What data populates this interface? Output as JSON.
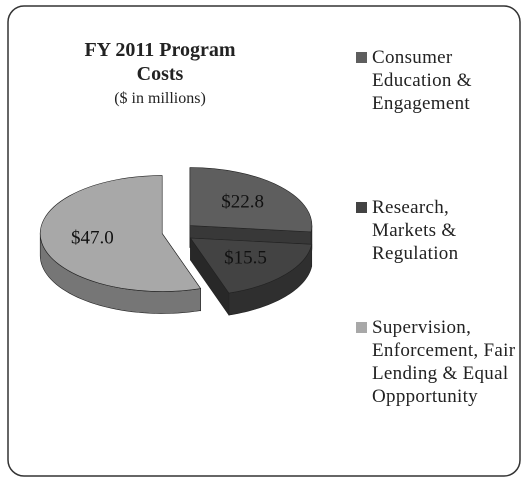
{
  "chart_data": {
    "type": "pie3d",
    "title": "FY 2011 Program Costs",
    "subtitle": "($ in millions)",
    "categories": [
      "Consumer Education & Engagement",
      "Research, Markets & Regulation",
      "Supervision, Enforcement, Fair Lending & Equal Oppportunity"
    ],
    "values": [
      22.8,
      15.5,
      47.0
    ],
    "value_labels": [
      "$22.8",
      "$15.5",
      "$47.0"
    ],
    "colors": [
      "#5e5e5e",
      "#434343",
      "#a8a8a8"
    ],
    "legend": "right"
  }
}
